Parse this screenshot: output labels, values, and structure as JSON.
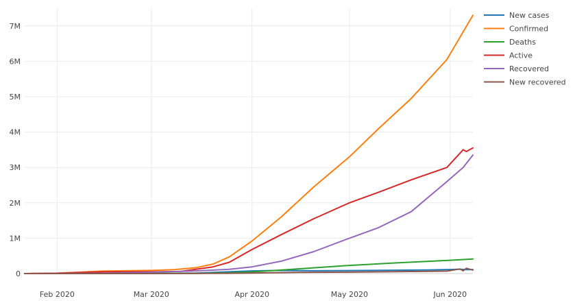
{
  "chart_data": {
    "type": "line",
    "title": "",
    "xlabel": "",
    "ylabel": "",
    "x_range": [
      "2020-01-22",
      "2020-06-08"
    ],
    "ylim": [
      0,
      7500000
    ],
    "grid": true,
    "legend_position": "top-right",
    "x_ticks": [
      {
        "date": "2020-02-01",
        "label": "Feb 2020"
      },
      {
        "date": "2020-03-01",
        "label": "Mar 2020"
      },
      {
        "date": "2020-04-01",
        "label": "Apr 2020"
      },
      {
        "date": "2020-05-01",
        "label": "May 2020"
      },
      {
        "date": "2020-06-01",
        "label": "Jun 2020"
      }
    ],
    "y_ticks": [
      {
        "value": 0,
        "label": "0"
      },
      {
        "value": 1000000,
        "label": "1M"
      },
      {
        "value": 2000000,
        "label": "2M"
      },
      {
        "value": 3000000,
        "label": "3M"
      },
      {
        "value": 4000000,
        "label": "4M"
      },
      {
        "value": 5000000,
        "label": "5M"
      },
      {
        "value": 6000000,
        "label": "6M"
      },
      {
        "value": 7000000,
        "label": "7M"
      }
    ],
    "series": [
      {
        "name": "New cases",
        "color": "#1f77b4",
        "points": [
          [
            "2020-01-22",
            0
          ],
          [
            "2020-02-01",
            2000
          ],
          [
            "2020-02-15",
            2500
          ],
          [
            "2020-03-01",
            2000
          ],
          [
            "2020-03-15",
            15000
          ],
          [
            "2020-03-25",
            50000
          ],
          [
            "2020-04-01",
            75000
          ],
          [
            "2020-04-10",
            90000
          ],
          [
            "2020-04-20",
            80000
          ],
          [
            "2020-05-01",
            85000
          ],
          [
            "2020-05-15",
            95000
          ],
          [
            "2020-05-25",
            100000
          ],
          [
            "2020-06-01",
            115000
          ],
          [
            "2020-06-04",
            125000
          ],
          [
            "2020-06-06",
            110000
          ],
          [
            "2020-06-08",
            115000
          ]
        ]
      },
      {
        "name": "Confirmed",
        "color": "#ff7f0e",
        "points": [
          [
            "2020-01-22",
            0
          ],
          [
            "2020-02-01",
            12000
          ],
          [
            "2020-02-15",
            70000
          ],
          [
            "2020-03-01",
            90000
          ],
          [
            "2020-03-08",
            110000
          ],
          [
            "2020-03-15",
            170000
          ],
          [
            "2020-03-20",
            270000
          ],
          [
            "2020-03-25",
            470000
          ],
          [
            "2020-04-01",
            920000
          ],
          [
            "2020-04-10",
            1600000
          ],
          [
            "2020-04-20",
            2450000
          ],
          [
            "2020-05-01",
            3300000
          ],
          [
            "2020-05-10",
            4100000
          ],
          [
            "2020-05-20",
            4950000
          ],
          [
            "2020-05-31",
            6050000
          ],
          [
            "2020-06-08",
            7300000
          ]
        ]
      },
      {
        "name": "Deaths",
        "color": "#2ca02c",
        "points": [
          [
            "2020-01-22",
            0
          ],
          [
            "2020-02-15",
            1500
          ],
          [
            "2020-03-01",
            3000
          ],
          [
            "2020-03-15",
            6000
          ],
          [
            "2020-03-25",
            22000
          ],
          [
            "2020-04-01",
            47000
          ],
          [
            "2020-04-15",
            130000
          ],
          [
            "2020-05-01",
            230000
          ],
          [
            "2020-05-15",
            300000
          ],
          [
            "2020-06-01",
            375000
          ],
          [
            "2020-06-08",
            410000
          ]
        ]
      },
      {
        "name": "Active",
        "color": "#d62728",
        "points": [
          [
            "2020-01-22",
            0
          ],
          [
            "2020-02-01",
            10000
          ],
          [
            "2020-02-15",
            50000
          ],
          [
            "2020-03-01",
            50000
          ],
          [
            "2020-03-10",
            60000
          ],
          [
            "2020-03-20",
            190000
          ],
          [
            "2020-03-25",
            320000
          ],
          [
            "2020-04-01",
            680000
          ],
          [
            "2020-04-10",
            1100000
          ],
          [
            "2020-04-20",
            1550000
          ],
          [
            "2020-05-01",
            2000000
          ],
          [
            "2020-05-10",
            2300000
          ],
          [
            "2020-05-20",
            2650000
          ],
          [
            "2020-05-31",
            3000000
          ],
          [
            "2020-06-05",
            3500000
          ],
          [
            "2020-06-06",
            3450000
          ],
          [
            "2020-06-08",
            3550000
          ]
        ]
      },
      {
        "name": "Recovered",
        "color": "#9467bd",
        "points": [
          [
            "2020-01-22",
            0
          ],
          [
            "2020-02-15",
            10000
          ],
          [
            "2020-03-01",
            40000
          ],
          [
            "2020-03-15",
            75000
          ],
          [
            "2020-03-25",
            120000
          ],
          [
            "2020-04-01",
            190000
          ],
          [
            "2020-04-10",
            350000
          ],
          [
            "2020-04-20",
            620000
          ],
          [
            "2020-05-01",
            1000000
          ],
          [
            "2020-05-10",
            1300000
          ],
          [
            "2020-05-20",
            1750000
          ],
          [
            "2020-05-31",
            2600000
          ],
          [
            "2020-06-05",
            3000000
          ],
          [
            "2020-06-08",
            3350000
          ]
        ]
      },
      {
        "name": "New recovered",
        "color": "#8c564b",
        "points": [
          [
            "2020-01-22",
            0
          ],
          [
            "2020-02-15",
            2000
          ],
          [
            "2020-03-01",
            2500
          ],
          [
            "2020-03-15",
            3000
          ],
          [
            "2020-03-25",
            8000
          ],
          [
            "2020-04-01",
            15000
          ],
          [
            "2020-04-15",
            35000
          ],
          [
            "2020-05-01",
            40000
          ],
          [
            "2020-05-15",
            55000
          ],
          [
            "2020-05-31",
            70000
          ],
          [
            "2020-06-04",
            130000
          ],
          [
            "2020-06-05",
            80000
          ],
          [
            "2020-06-06",
            150000
          ],
          [
            "2020-06-08",
            100000
          ]
        ]
      }
    ]
  }
}
